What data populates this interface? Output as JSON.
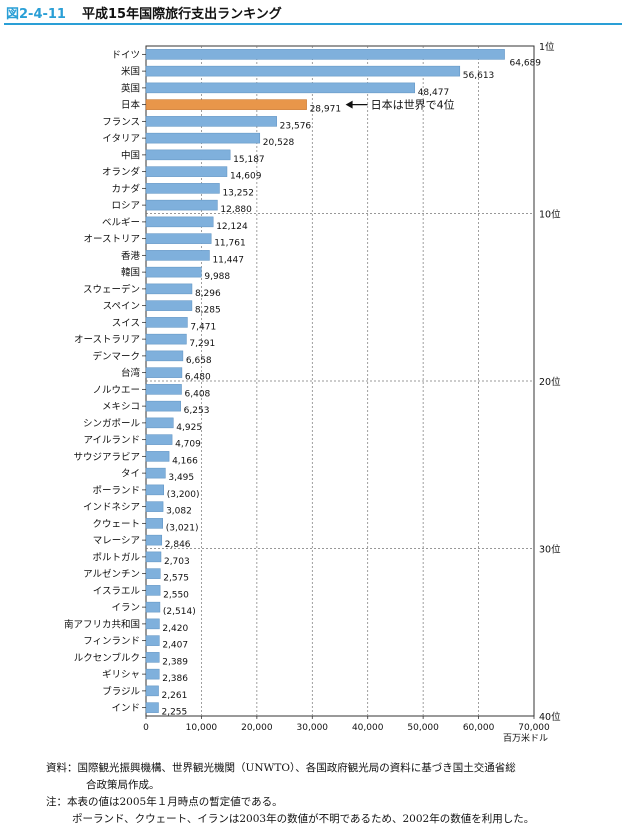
{
  "header": {
    "figure_number": "図2-4-11",
    "title": "平成15年国際旅行支出ランキング"
  },
  "colors": {
    "accent": "#2a9fd6",
    "bar": "#7fb0dc",
    "highlight_bar": "#e8964a"
  },
  "chart_data": {
    "type": "bar",
    "orientation": "horizontal",
    "title": "平成15年国際旅行支出ランキング",
    "xlabel": "",
    "ylabel": "",
    "unit": "百万米ドル",
    "xlim": [
      0,
      70000
    ],
    "x_ticks": [
      "0",
      "10,000",
      "20,000",
      "30,000",
      "40,000",
      "50,000",
      "60,000",
      "70,000"
    ],
    "x_tick_values": [
      0,
      10000,
      20000,
      30000,
      40000,
      50000,
      60000,
      70000
    ],
    "grid": "vertical dashed",
    "rank_labels": [
      {
        "index": 0,
        "text": "1位"
      },
      {
        "index": 10,
        "text": "10位"
      },
      {
        "index": 20,
        "text": "20位"
      },
      {
        "index": 30,
        "text": "30位"
      },
      {
        "index": 40,
        "text": "40位"
      }
    ],
    "highlight": {
      "index": 3,
      "annotation": "日本は世界で4位"
    },
    "categories": [
      "ドイツ",
      "米国",
      "英国",
      "日本",
      "フランス",
      "イタリア",
      "中国",
      "オランダ",
      "カナダ",
      "ロシア",
      "ベルギー",
      "オーストリア",
      "香港",
      "韓国",
      "スウェーデン",
      "スペイン",
      "スイス",
      "オーストラリア",
      "デンマーク",
      "台湾",
      "ノルウエー",
      "メキシコ",
      "シンガポール",
      "アイルランド",
      "サウジアラビア",
      "タイ",
      "ポーランド",
      "インドネシア",
      "クウェート",
      "マレーシア",
      "ポルトガル",
      "アルゼンチン",
      "イスラエル",
      "イラン",
      "南アフリカ共和国",
      "フィンランド",
      "ルクセンブルク",
      "ギリシャ",
      "ブラジル",
      "インド"
    ],
    "values": [
      64689,
      56613,
      48477,
      28971,
      23576,
      20528,
      15187,
      14609,
      13252,
      12880,
      12124,
      11761,
      11447,
      9988,
      8296,
      8285,
      7471,
      7291,
      6658,
      6480,
      6408,
      6253,
      4925,
      4709,
      4166,
      3495,
      3200,
      3082,
      3021,
      2846,
      2703,
      2575,
      2550,
      2514,
      2420,
      2407,
      2389,
      2386,
      2261,
      2255
    ],
    "value_labels": [
      "64,689",
      "56,613",
      "48,477",
      "28,971",
      "23,576",
      "20,528",
      "15,187",
      "14,609",
      "13,252",
      "12,880",
      "12,124",
      "11,761",
      "11,447",
      "9,988",
      "8,296",
      "8,285",
      "7,471",
      "7,291",
      "6,658",
      "6,480",
      "6,408",
      "6,253",
      "4,925",
      "4,709",
      "4,166",
      "3,495",
      "(3,200)",
      "3,082",
      "(3,021)",
      "2,846",
      "2,703",
      "2,575",
      "2,550",
      "(2,514)",
      "2,420",
      "2,407",
      "2,389",
      "2,386",
      "2,261",
      "2,255"
    ]
  },
  "notes": {
    "line1": "資料：国際観光振興機構、世界観光機関（UNWTO）、各国政府観光局の資料に基づき国土交通省総",
    "line2": "合政策局作成。",
    "line3": "注：本表の値は2005年１月時点の暫定値である。",
    "line4": "ポーランド、クウェート、イランは2003年の数値が不明であるため、2002年の数値を利用した。"
  }
}
